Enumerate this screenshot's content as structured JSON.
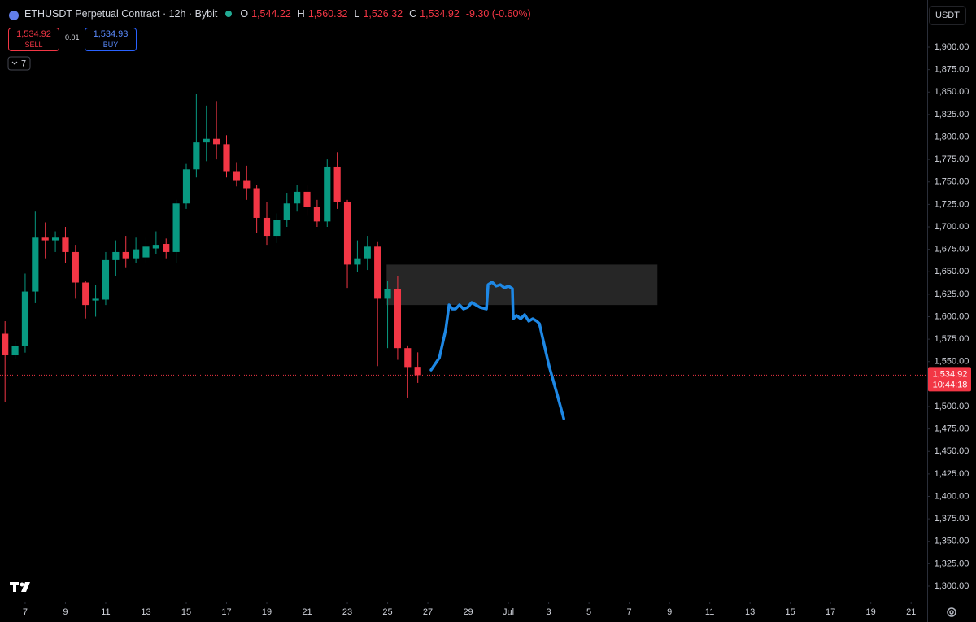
{
  "header": {
    "title": "ETHUSDT Perpetual Contract · 12h · Bybit",
    "o_label": "O",
    "o": "1,544.22",
    "h_label": "H",
    "h": "1,560.32",
    "l_label": "L",
    "l": "1,526.32",
    "c_label": "C",
    "c": "1,534.92",
    "change": "-9.30 (-0.60%)"
  },
  "trade_panel": {
    "sell_price": "1,534.92",
    "sell_label": "SELL",
    "spread": "0.01",
    "buy_price": "1,534.93",
    "buy_label": "BUY",
    "indicators": "7"
  },
  "currency": "USDT",
  "chart_data": {
    "type": "candlestick",
    "up_color": "#089981",
    "down_color": "#f23645",
    "grid": false,
    "x": [
      6,
      6.5,
      7,
      7.5,
      8,
      8.5,
      9,
      9.5,
      10,
      10.5,
      11,
      11.5,
      12,
      12.5,
      13,
      13.5,
      14,
      14.5,
      15,
      15.5,
      16,
      16.5,
      17,
      17.5,
      18,
      18.5,
      19,
      19.5,
      20,
      20.5,
      21,
      21.5,
      22,
      22.5,
      23,
      23.5,
      24,
      24.5,
      25,
      25.5,
      26,
      26.5
    ],
    "open": [
      1581,
      1557,
      1567,
      1628,
      1688,
      1685,
      1688,
      1672,
      1638,
      1618,
      1619,
      1663,
      1672,
      1665,
      1666,
      1676,
      1681,
      1672,
      1726,
      1764,
      1794,
      1798,
      1792,
      1762,
      1752,
      1743,
      1710,
      1690,
      1708,
      1726,
      1739,
      1722,
      1706,
      1767,
      1728,
      1658,
      1665,
      1678,
      1620,
      1631,
      1565,
      1544.22
    ],
    "high": [
      1595,
      1573,
      1648,
      1717,
      1705,
      1695,
      1700,
      1680,
      1640,
      1635,
      1672,
      1685,
      1690,
      1688,
      1688,
      1695,
      1687,
      1730,
      1770,
      1848,
      1835,
      1840,
      1802,
      1772,
      1768,
      1747,
      1728,
      1715,
      1738,
      1747,
      1746,
      1730,
      1775,
      1783,
      1730,
      1685,
      1690,
      1683,
      1640,
      1645,
      1568,
      1560.32
    ],
    "low": [
      1505,
      1553,
      1560,
      1615,
      1665,
      1672,
      1660,
      1620,
      1598,
      1600,
      1613,
      1645,
      1655,
      1660,
      1660,
      1670,
      1665,
      1660,
      1720,
      1755,
      1773,
      1775,
      1755,
      1745,
      1730,
      1693,
      1680,
      1682,
      1700,
      1717,
      1712,
      1700,
      1700,
      1720,
      1632,
      1650,
      1652,
      1545,
      1565,
      1552,
      1510,
      1526.32
    ],
    "close": [
      1557,
      1567,
      1628,
      1688,
      1685,
      1688,
      1672,
      1638,
      1613,
      1620,
      1663,
      1672,
      1665,
      1675,
      1678,
      1680,
      1672,
      1726,
      1764,
      1794,
      1798,
      1792,
      1762,
      1752,
      1743,
      1710,
      1690,
      1708,
      1726,
      1739,
      1722,
      1706,
      1767,
      1728,
      1658,
      1665,
      1678,
      1620,
      1631,
      1565,
      1544,
      1534.92
    ],
    "xlim": [
      5.75,
      51.8
    ],
    "ylim": [
      1282.8,
      1952.5
    ],
    "xticks": [
      7,
      9,
      11,
      13,
      15,
      17,
      19,
      21,
      23,
      25,
      27,
      29,
      {
        "value": 31,
        "label": "Jul"
      },
      {
        "value": 33,
        "label": "3"
      },
      {
        "value": 35,
        "label": "5"
      },
      {
        "value": 37,
        "label": "7"
      },
      {
        "value": 39,
        "label": "9"
      },
      {
        "value": 41,
        "label": "11"
      },
      {
        "value": 43,
        "label": "13"
      },
      {
        "value": 45,
        "label": "15"
      },
      {
        "value": 47,
        "label": "17"
      },
      {
        "value": 49,
        "label": "19"
      },
      {
        "value": 51,
        "label": "21"
      }
    ],
    "yticks": [
      {
        "value": 1300,
        "label": "1,300.00"
      },
      {
        "value": 1325,
        "label": "1,325.00"
      },
      {
        "value": 1350,
        "label": "1,350.00"
      },
      {
        "value": 1375,
        "label": "1,375.00"
      },
      {
        "value": 1400,
        "label": "1,400.00"
      },
      {
        "value": 1425,
        "label": "1,425.00"
      },
      {
        "value": 1450,
        "label": "1,450.00"
      },
      {
        "value": 1475,
        "label": "1,475.00"
      },
      {
        "value": 1500,
        "label": "1,500.00"
      },
      {
        "value": 1525,
        "label": "1,525.00"
      },
      {
        "value": 1550,
        "label": "1,550.00"
      },
      {
        "value": 1575,
        "label": "1,575.00"
      },
      {
        "value": 1600,
        "label": "1,600.00"
      },
      {
        "value": 1625,
        "label": "1,625.00"
      },
      {
        "value": 1650,
        "label": "1,650.00"
      },
      {
        "value": 1675,
        "label": "1,675.00"
      },
      {
        "value": 1700,
        "label": "1,700.00"
      },
      {
        "value": 1725,
        "label": "1,725.00"
      },
      {
        "value": 1750,
        "label": "1,750.00"
      },
      {
        "value": 1775,
        "label": "1,775.00"
      },
      {
        "value": 1800,
        "label": "1,800.00"
      },
      {
        "value": 1825,
        "label": "1,825.00"
      },
      {
        "value": 1850,
        "label": "1,850.00"
      },
      {
        "value": 1875,
        "label": "1,875.00"
      },
      {
        "value": 1900,
        "label": "1,900.00"
      }
    ],
    "last_price": 1534.92,
    "last_price_label": "1,534.92",
    "countdown": "10:44:18",
    "zone": {
      "color": "#262626",
      "x": [
        24.95,
        38.4
      ],
      "y": [
        1613,
        1658
      ]
    },
    "drawing": {
      "color": "#1e88e5",
      "x": [
        27.16,
        27.57,
        27.89,
        28.05,
        28.21,
        28.37,
        28.57,
        28.77,
        28.98,
        29.18,
        29.38,
        29.59,
        29.91,
        29.99,
        30.19,
        30.39,
        30.6,
        30.8,
        31.0,
        31.2,
        31.24,
        31.4,
        31.61,
        31.81,
        32.01,
        32.21,
        32.41,
        32.54,
        32.74,
        33.02,
        33.42,
        33.75
      ],
      "y": [
        1540.7,
        1554.3,
        1586.0,
        1613.1,
        1608.6,
        1608.6,
        1613.1,
        1608.6,
        1610.4,
        1615.8,
        1613.1,
        1610.4,
        1608.6,
        1635.7,
        1638.5,
        1634.0,
        1635.7,
        1632.1,
        1634.0,
        1631.2,
        1597.7,
        1601.4,
        1597.7,
        1602.3,
        1595.0,
        1597.7,
        1595.0,
        1592.3,
        1572.4,
        1545.2,
        1513.6,
        1486.4
      ]
    }
  }
}
